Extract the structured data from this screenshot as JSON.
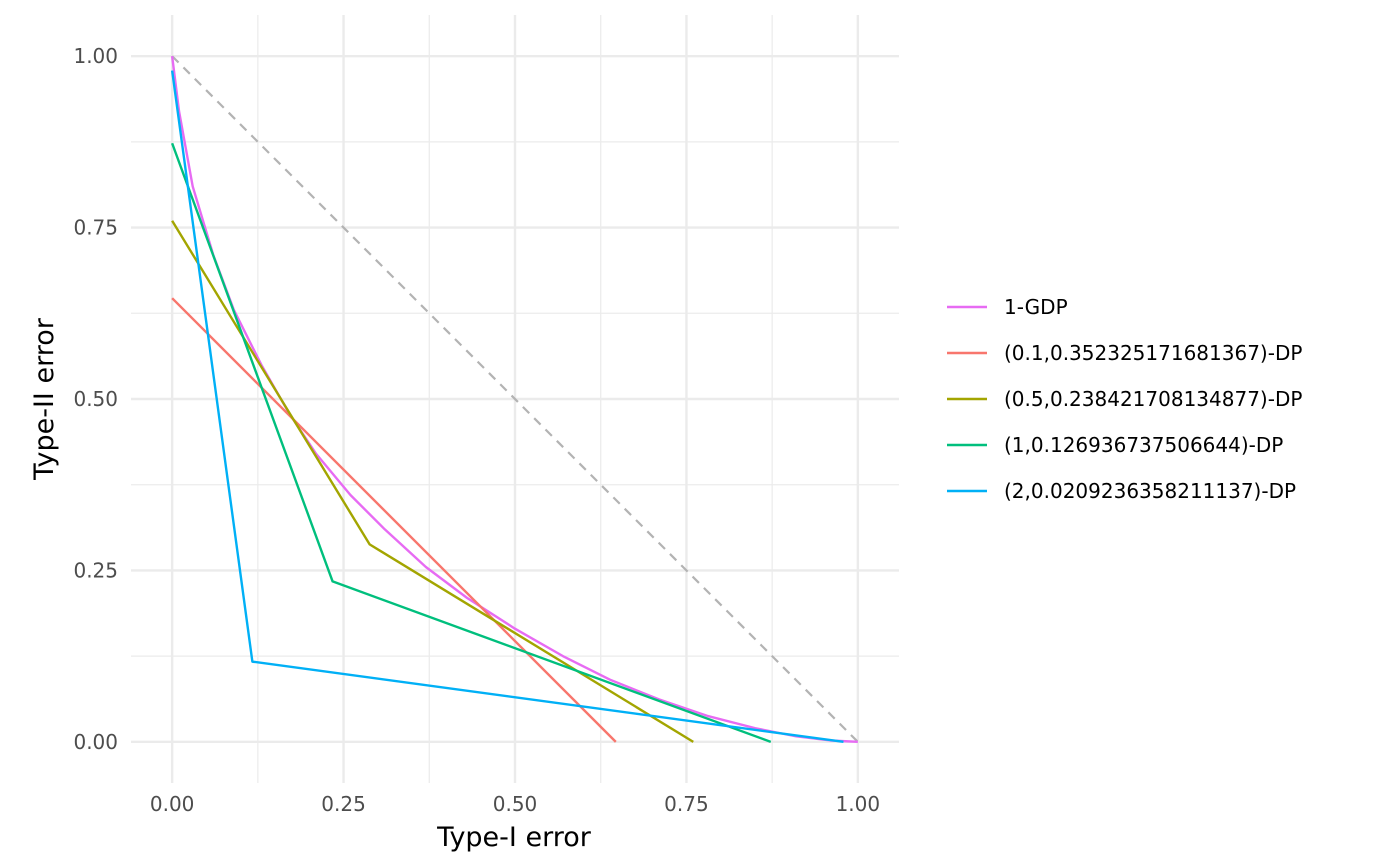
{
  "chart_data": {
    "type": "line",
    "title": "",
    "xlabel": "Type-I error",
    "ylabel": "Type-II error",
    "xlim": [
      -0.06,
      1.06
    ],
    "ylim": [
      -0.06,
      1.06
    ],
    "x_ticks": [
      "0.00",
      "0.25",
      "0.50",
      "0.75",
      "1.00"
    ],
    "y_ticks": [
      "0.00",
      "0.25",
      "0.50",
      "0.75",
      "1.00"
    ],
    "tick_values": [
      0,
      0.25,
      0.5,
      0.75,
      1.0
    ],
    "minor_tick_values": [
      0.125,
      0.375,
      0.625,
      0.875
    ],
    "grid": true,
    "legend_position": "right",
    "reference_line": {
      "style": "dashed",
      "color": "#b3b3b3",
      "x": [
        0,
        1
      ],
      "y": [
        1,
        0
      ]
    },
    "series": [
      {
        "name": "1-GDP",
        "color": "#E76BF3",
        "x": [
          0,
          0.01,
          0.03,
          0.06,
          0.09,
          0.13,
          0.17,
          0.21,
          0.26,
          0.31,
          0.37,
          0.43,
          0.5,
          0.57,
          0.64,
          0.71,
          0.78,
          0.85,
          0.91,
          0.96,
          1.0
        ],
        "y": [
          1.0,
          0.92,
          0.81,
          0.71,
          0.63,
          0.55,
          0.48,
          0.42,
          0.36,
          0.31,
          0.255,
          0.21,
          0.165,
          0.125,
          0.09,
          0.062,
          0.038,
          0.02,
          0.008,
          0.002,
          0
        ]
      },
      {
        "name": "(0.1,0.352325171681367)-DP",
        "color": "#F8766D",
        "x": [
          0,
          0.647
        ],
        "y": [
          0.647,
          0
        ]
      },
      {
        "name": "(0.5,0.238421708134877)-DP",
        "color": "#A3A500",
        "x": [
          0,
          0.288,
          0.76
        ],
        "y": [
          0.76,
          0.288,
          0
        ]
      },
      {
        "name": "(1,0.126936737506644)-DP",
        "color": "#00BF7D",
        "x": [
          0,
          0.234,
          0.873
        ],
        "y": [
          0.873,
          0.234,
          0
        ]
      },
      {
        "name": "(2,0.0209236358211137)-DP",
        "color": "#00B0F6",
        "x": [
          0,
          0.117,
          0.979
        ],
        "y": [
          0.979,
          0.117,
          0
        ]
      }
    ]
  }
}
